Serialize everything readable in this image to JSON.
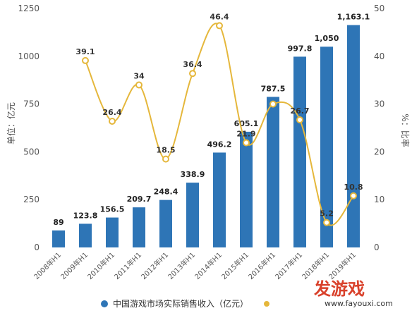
{
  "chart_data": {
    "type": "bar",
    "categories": [
      "2008年H1",
      "2009年H1",
      "2010年H1",
      "2011年H1",
      "2012年H1",
      "2013年H1",
      "2014年H1",
      "2015年H1",
      "2016年H1",
      "2017年H1",
      "2018年H1",
      "2019年H1"
    ],
    "series": [
      {
        "name": "中国游戏市场实际销售收入（亿元）",
        "type": "bar",
        "axis": "left",
        "values": [
          89,
          123.8,
          156.5,
          209.7,
          248.4,
          338.9,
          496.2,
          605.1,
          787.5,
          997.8,
          1050,
          1163.1
        ],
        "labels": [
          "89",
          "123.8",
          "156.5",
          "209.7",
          "248.4",
          "338.9",
          "496.2",
          "605.1",
          "787.5",
          "997.8",
          "1,050",
          "1,163.1"
        ],
        "color": "#2e75b6"
      },
      {
        "name": "",
        "type": "line",
        "axis": "right",
        "values": [
          null,
          39.1,
          26.4,
          34,
          18.5,
          36.4,
          46.4,
          21.9,
          30,
          26.7,
          5.2,
          10.8
        ],
        "labels": [
          "",
          "39.1",
          "26.4",
          "34",
          "18.5",
          "36.4",
          "46.4",
          "21.9",
          "",
          "26.7",
          "5.2",
          "10.8"
        ],
        "color": "#e5b73b"
      }
    ],
    "ylabel": "单位：亿元",
    "y2label": "%：比率",
    "ylim": [
      0,
      1250
    ],
    "y2lim": [
      0,
      50
    ],
    "yticks": [
      "0",
      "250",
      "500",
      "750",
      "1000",
      "1250"
    ],
    "y2ticks": [
      "0",
      "10",
      "20",
      "30",
      "40",
      "50"
    ],
    "legend_position": "bottom",
    "grid": false
  },
  "watermark": {
    "logo": "发游戏",
    "url": "www.fayouxi.com"
  }
}
